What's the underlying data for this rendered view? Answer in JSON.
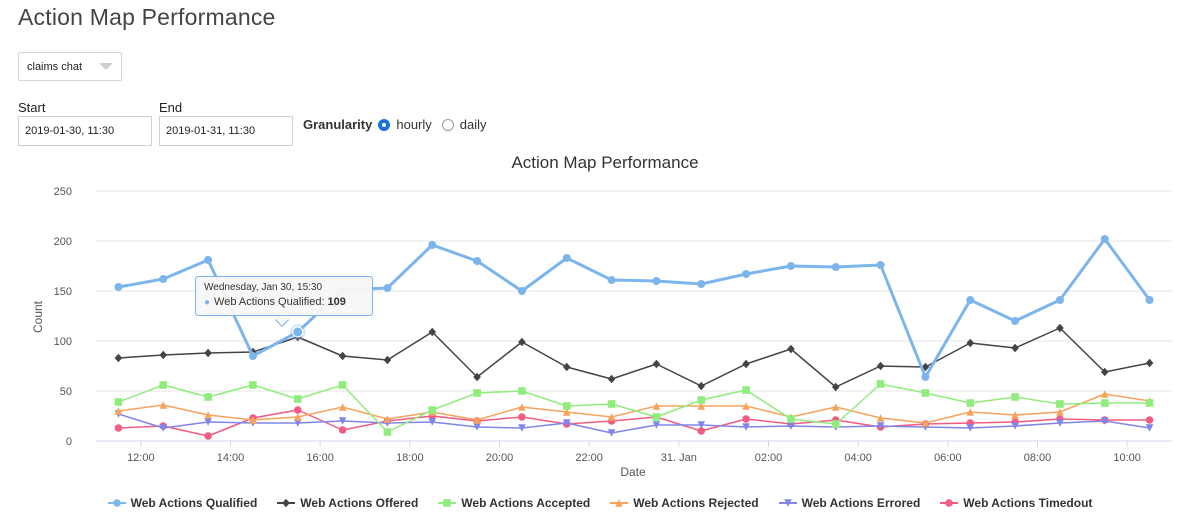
{
  "page": {
    "title": "Action Map Performance"
  },
  "controls": {
    "app_select": {
      "value": "claims chat"
    },
    "start": {
      "label": "Start",
      "value": "2019-01-30, 11:30"
    },
    "end": {
      "label": "End",
      "value": "2019-01-31, 11:30"
    },
    "granularity": {
      "label": "Granularity",
      "options": [
        "hourly",
        "daily"
      ],
      "selected": "hourly"
    }
  },
  "tooltip": {
    "date": "Wednesday, Jan 30, 15:30",
    "series": "Web Actions Qualified:",
    "value": "109"
  },
  "chart_data": {
    "type": "line",
    "title": "Action Map Performance",
    "xlabel": "Date",
    "ylabel": "Count",
    "ylim": [
      0,
      250
    ],
    "yticks": [
      0,
      50,
      100,
      150,
      200,
      250
    ],
    "x": [
      "2019-01-30 11:30",
      "2019-01-30 12:30",
      "2019-01-30 13:30",
      "2019-01-30 14:30",
      "2019-01-30 15:30",
      "2019-01-30 16:30",
      "2019-01-30 17:30",
      "2019-01-30 18:30",
      "2019-01-30 19:30",
      "2019-01-30 20:30",
      "2019-01-30 21:30",
      "2019-01-30 22:30",
      "2019-01-30 23:30",
      "2019-01-31 00:30",
      "2019-01-31 01:30",
      "2019-01-31 02:30",
      "2019-01-31 03:30",
      "2019-01-31 04:30",
      "2019-01-31 05:30",
      "2019-01-31 06:30",
      "2019-01-31 07:30",
      "2019-01-31 08:30",
      "2019-01-31 09:30",
      "2019-01-31 10:30"
    ],
    "xticks": [
      {
        "at": "2019-01-30 12:00",
        "label": "12:00"
      },
      {
        "at": "2019-01-30 14:00",
        "label": "14:00"
      },
      {
        "at": "2019-01-30 16:00",
        "label": "16:00"
      },
      {
        "at": "2019-01-30 18:00",
        "label": "18:00"
      },
      {
        "at": "2019-01-30 20:00",
        "label": "20:00"
      },
      {
        "at": "2019-01-30 22:00",
        "label": "22:00"
      },
      {
        "at": "2019-01-31 00:00",
        "label": "31. Jan"
      },
      {
        "at": "2019-01-31 02:00",
        "label": "02:00"
      },
      {
        "at": "2019-01-31 04:00",
        "label": "04:00"
      },
      {
        "at": "2019-01-31 06:00",
        "label": "06:00"
      },
      {
        "at": "2019-01-31 08:00",
        "label": "08:00"
      },
      {
        "at": "2019-01-31 10:00",
        "label": "10:00"
      }
    ],
    "grid": true,
    "legend_position": "bottom",
    "series": [
      {
        "name": "Web Actions Qualified",
        "color": "#7cb5ec",
        "marker": "circle",
        "values": [
          154,
          162,
          181,
          85,
          109,
          151,
          153,
          196,
          180,
          150,
          183,
          161,
          160,
          157,
          167,
          175,
          174,
          176,
          64,
          141,
          120,
          141,
          202,
          141
        ]
      },
      {
        "name": "Web Actions Offered",
        "color": "#434348",
        "marker": "diamond",
        "values": [
          83,
          86,
          88,
          89,
          104,
          85,
          81,
          109,
          64,
          99,
          74,
          62,
          77,
          55,
          77,
          92,
          54,
          75,
          74,
          98,
          93,
          113,
          69,
          78
        ]
      },
      {
        "name": "Web Actions Accepted",
        "color": "#90ed7d",
        "marker": "square",
        "values": [
          39,
          56,
          44,
          56,
          42,
          56,
          9,
          31,
          48,
          50,
          35,
          37,
          24,
          41,
          51,
          22,
          17,
          57,
          48,
          38,
          44,
          37,
          38,
          38
        ]
      },
      {
        "name": "Web Actions Rejected",
        "color": "#f7a35c",
        "marker": "triangle",
        "values": [
          30,
          36,
          26,
          21,
          24,
          34,
          22,
          29,
          21,
          34,
          29,
          24,
          35,
          35,
          35,
          24,
          34,
          23,
          18,
          29,
          26,
          29,
          47,
          40
        ]
      },
      {
        "name": "Web Actions Errored",
        "color": "#8085e9",
        "marker": "triangle-down",
        "values": [
          27,
          13,
          19,
          18,
          18,
          20,
          18,
          19,
          14,
          13,
          18,
          8,
          16,
          16,
          14,
          15,
          14,
          15,
          14,
          13,
          15,
          18,
          20,
          13
        ]
      },
      {
        "name": "Web Actions Timedout",
        "color": "#f15c80",
        "marker": "circle",
        "values": [
          13,
          15,
          5,
          23,
          31,
          11,
          20,
          25,
          20,
          24,
          17,
          20,
          24,
          10,
          22,
          17,
          21,
          14,
          17,
          18,
          19,
          22,
          21,
          21
        ]
      }
    ]
  }
}
